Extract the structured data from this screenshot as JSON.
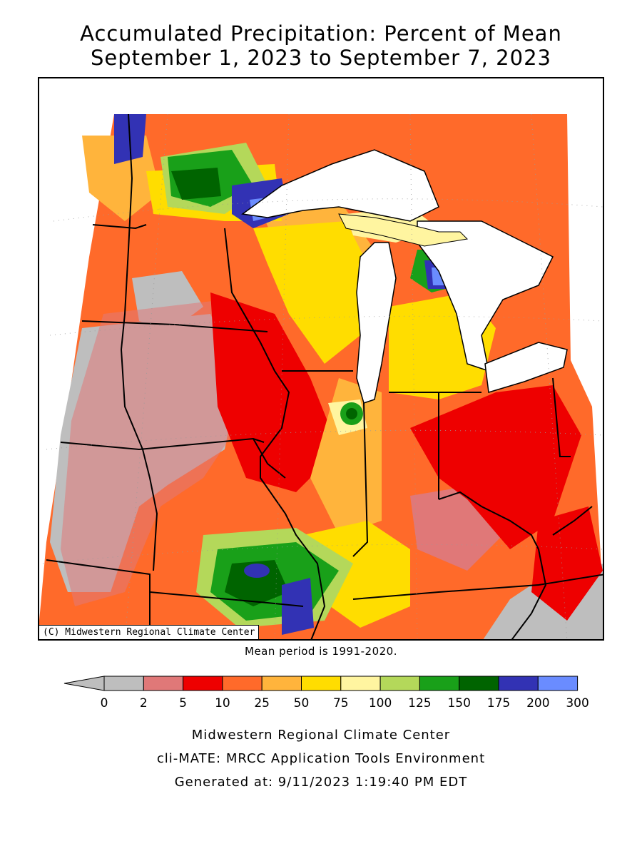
{
  "title": {
    "line1": "Accumulated Precipitation: Percent of Mean",
    "line2": "September 1, 2023 to September 7, 2023"
  },
  "map": {
    "copyright": "(C) Midwestern Regional Climate Center"
  },
  "mean_note": "Mean period is 1991-2020.",
  "legend": {
    "labels": [
      "0",
      "2",
      "5",
      "10",
      "25",
      "50",
      "75",
      "100",
      "125",
      "150",
      "175",
      "200",
      "300"
    ],
    "colors": [
      "#bebebe",
      "#e07878",
      "#ee0000",
      "#ff6a2a",
      "#ffb43c",
      "#ffdd00",
      "#fff5a0",
      "#b4d85a",
      "#19a019",
      "#006400",
      "#3232b4",
      "#6a8cff"
    ],
    "arrow_color": "#bebebe"
  },
  "footer": {
    "line1": "Midwestern Regional Climate Center",
    "line2": "cli-MATE: MRCC Application Tools Environment",
    "line3": "Generated at: 9/11/2023 1:19:40 PM EDT"
  }
}
